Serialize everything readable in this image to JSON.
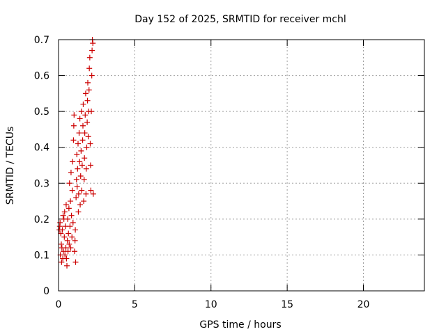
{
  "chart_data": {
    "type": "scatter",
    "title": "Day 152 of 2025, SRMTID for receiver mchl",
    "xlabel": "GPS time / hours",
    "ylabel": "SRMTID / TECUs",
    "xlim": [
      0,
      24
    ],
    "ylim": [
      0,
      0.7
    ],
    "xticks": [
      0,
      5,
      10,
      15,
      20
    ],
    "yticks": [
      0,
      0.1,
      0.2,
      0.3,
      0.4,
      0.5,
      0.6,
      0.7
    ],
    "grid": true,
    "marker": "+",
    "color": "#cc0000",
    "series": [
      {
        "name": "SRMTID",
        "points": [
          [
            0.05,
            0.17
          ],
          [
            0.08,
            0.18
          ],
          [
            0.1,
            0.19
          ],
          [
            0.12,
            0.1
          ],
          [
            0.15,
            0.16
          ],
          [
            0.18,
            0.13
          ],
          [
            0.2,
            0.08
          ],
          [
            0.22,
            0.12
          ],
          [
            0.25,
            0.17
          ],
          [
            0.28,
            0.09
          ],
          [
            0.3,
            0.21
          ],
          [
            0.32,
            0.11
          ],
          [
            0.35,
            0.2
          ],
          [
            0.38,
            0.15
          ],
          [
            0.4,
            0.22
          ],
          [
            0.42,
            0.1
          ],
          [
            0.45,
            0.18
          ],
          [
            0.48,
            0.12
          ],
          [
            0.5,
            0.24
          ],
          [
            0.52,
            0.09
          ],
          [
            0.55,
            0.07
          ],
          [
            0.58,
            0.14
          ],
          [
            0.6,
            0.2
          ],
          [
            0.62,
            0.11
          ],
          [
            0.65,
            0.16
          ],
          [
            0.68,
            0.23
          ],
          [
            0.7,
            0.13
          ],
          [
            0.72,
            0.3
          ],
          [
            0.75,
            0.18
          ],
          [
            0.78,
            0.25
          ],
          [
            0.8,
            0.12
          ],
          [
            0.82,
            0.33
          ],
          [
            0.85,
            0.21
          ],
          [
            0.88,
            0.15
          ],
          [
            0.9,
            0.28
          ],
          [
            0.92,
            0.36
          ],
          [
            0.95,
            0.19
          ],
          [
            0.98,
            0.42
          ],
          [
            1.0,
            0.46
          ],
          [
            1.02,
            0.49
          ],
          [
            1.05,
            0.11
          ],
          [
            1.08,
            0.14
          ],
          [
            1.1,
            0.17
          ],
          [
            1.12,
            0.08
          ],
          [
            1.15,
            0.26
          ],
          [
            1.18,
            0.31
          ],
          [
            1.2,
            0.38
          ],
          [
            1.22,
            0.29
          ],
          [
            1.25,
            0.34
          ],
          [
            1.28,
            0.41
          ],
          [
            1.3,
            0.22
          ],
          [
            1.32,
            0.27
          ],
          [
            1.35,
            0.44
          ],
          [
            1.38,
            0.36
          ],
          [
            1.4,
            0.48
          ],
          [
            1.42,
            0.24
          ],
          [
            1.45,
            0.32
          ],
          [
            1.48,
            0.39
          ],
          [
            1.5,
            0.5
          ],
          [
            1.52,
            0.28
          ],
          [
            1.55,
            0.35
          ],
          [
            1.58,
            0.42
          ],
          [
            1.6,
            0.46
          ],
          [
            1.62,
            0.52
          ],
          [
            1.65,
            0.25
          ],
          [
            1.68,
            0.31
          ],
          [
            1.7,
            0.37
          ],
          [
            1.72,
            0.44
          ],
          [
            1.75,
            0.49
          ],
          [
            1.78,
            0.55
          ],
          [
            1.8,
            0.27
          ],
          [
            1.82,
            0.34
          ],
          [
            1.85,
            0.4
          ],
          [
            1.88,
            0.47
          ],
          [
            1.9,
            0.53
          ],
          [
            1.92,
            0.58
          ],
          [
            1.95,
            0.43
          ],
          [
            1.98,
            0.5
          ],
          [
            2.0,
            0.56
          ],
          [
            2.02,
            0.62
          ],
          [
            2.05,
            0.65
          ],
          [
            2.08,
            0.41
          ],
          [
            2.1,
            0.35
          ],
          [
            2.12,
            0.28
          ],
          [
            2.15,
            0.5
          ],
          [
            2.18,
            0.6
          ],
          [
            2.2,
            0.67
          ],
          [
            2.22,
            0.7
          ],
          [
            2.25,
            0.69
          ],
          [
            2.28,
            0.27
          ]
        ]
      }
    ]
  }
}
